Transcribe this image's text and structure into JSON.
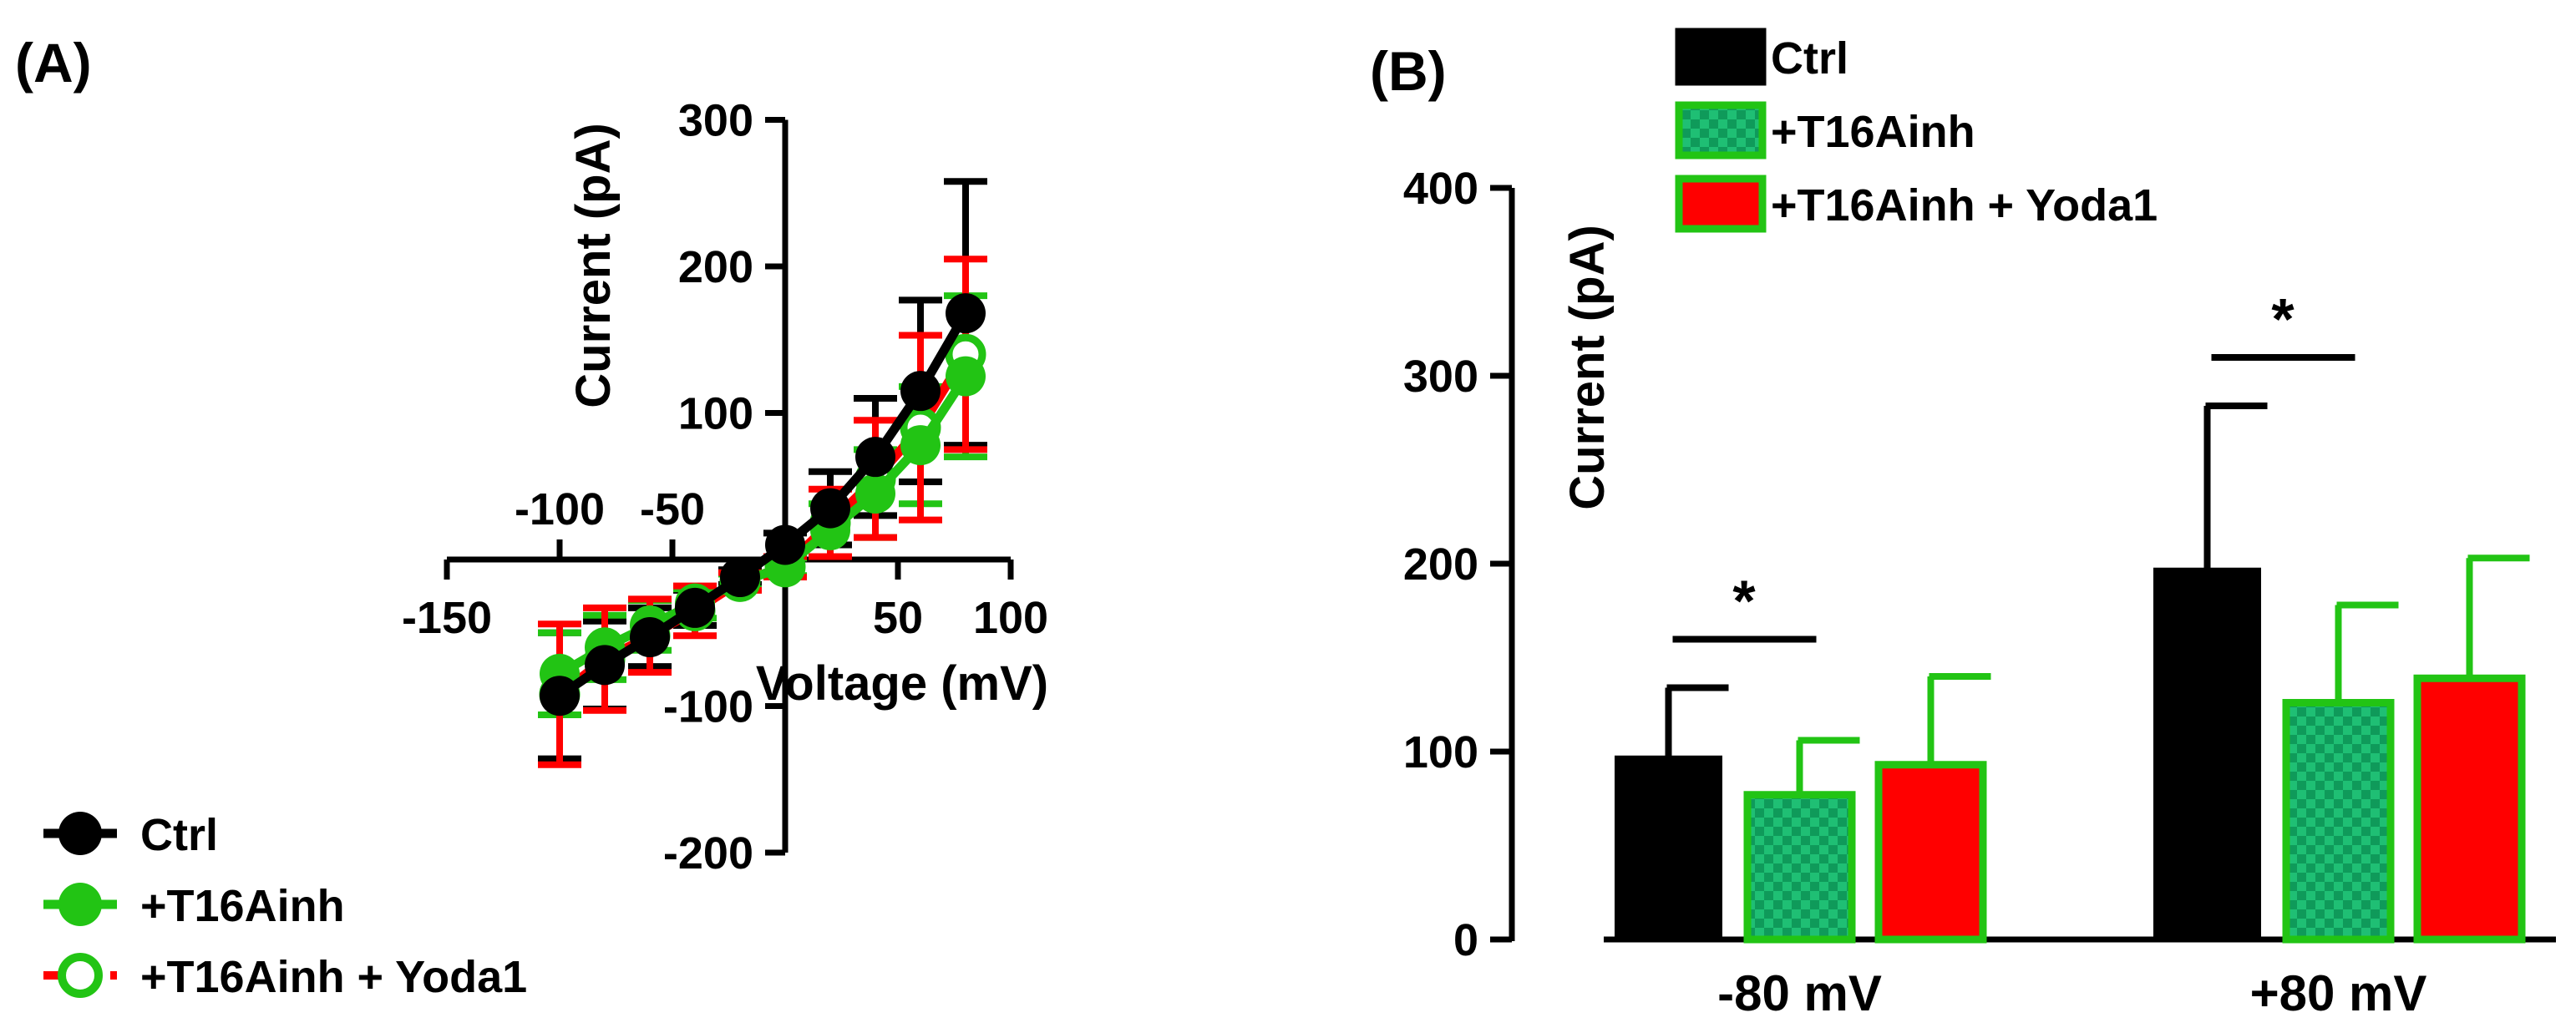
{
  "colors": {
    "ctrl": "#000000",
    "t16": "#22c414",
    "t16_dark": "#16a34a",
    "yoda": "#ff0000",
    "checker": "#11a866"
  },
  "legend_a": [
    {
      "key": "ctrl",
      "label": "Ctrl"
    },
    {
      "key": "t16",
      "label": "+T16Ainh"
    },
    {
      "key": "yoda",
      "label": "+T16Ainh + Yoda1"
    }
  ],
  "legend_b": [
    {
      "key": "ctrl",
      "label": "Ctrl"
    },
    {
      "key": "t16",
      "label": "+T16Ainh"
    },
    {
      "key": "yoda",
      "label": "+T16Ainh + Yoda1"
    }
  ],
  "chart_data": [
    {
      "panel_label": "(A)",
      "type": "line",
      "xlabel": "Voltage (mV)",
      "ylabel": "Current (pA)",
      "xlim": [
        -150,
        100
      ],
      "ylim": [
        -200,
        300
      ],
      "x_ticks": [
        -150,
        -100,
        -50,
        50,
        100
      ],
      "x_tick_labels": [
        "-150",
        "-100",
        "-50",
        "50",
        "100"
      ],
      "y_ticks": [
        300,
        200,
        100,
        -100,
        -200
      ],
      "y_tick_labels": [
        "300",
        "200",
        "100",
        "-100",
        "-200"
      ],
      "x": [
        -100,
        -80,
        -60,
        -40,
        -20,
        0,
        20,
        40,
        60,
        80
      ],
      "series": [
        {
          "key": "ctrl",
          "name": "Ctrl",
          "values": [
            -93,
            -72,
            -53,
            -33,
            -12,
            10,
            35,
            70,
            115,
            168
          ],
          "err": [
            43,
            30,
            20,
            12,
            5,
            8,
            25,
            40,
            62,
            90
          ],
          "marker": "filled"
        },
        {
          "key": "t16",
          "name": "+T16Ainh",
          "values": [
            -78,
            -60,
            -45,
            -30,
            -15,
            -5,
            20,
            45,
            78,
            125
          ],
          "err": [
            28,
            22,
            17,
            10,
            5,
            6,
            18,
            30,
            40,
            55
          ],
          "marker": "filled"
        },
        {
          "key": "yoda",
          "name": "+T16Ainh + Yoda1",
          "values": [
            -92,
            -68,
            -52,
            -35,
            -15,
            -5,
            25,
            55,
            90,
            140
          ],
          "err": [
            48,
            35,
            25,
            17,
            6,
            7,
            23,
            40,
            63,
            65
          ],
          "marker": "open"
        }
      ]
    },
    {
      "panel_label": "(B)",
      "type": "bar",
      "ylabel": "Current (pA)",
      "ylim": [
        0,
        400
      ],
      "y_ticks": [
        0,
        100,
        200,
        300,
        400
      ],
      "y_tick_labels": [
        "0",
        "100",
        "200",
        "300",
        "400"
      ],
      "categories": [
        "-80 mV",
        "+80 mV"
      ],
      "series": [
        {
          "key": "ctrl",
          "name": "Ctrl",
          "values": [
            97,
            197
          ],
          "err": [
            37,
            87
          ]
        },
        {
          "key": "t16",
          "name": "+T16Ainh",
          "values": [
            77,
            126
          ],
          "err": [
            29,
            52
          ]
        },
        {
          "key": "yoda",
          "name": "+T16Ainh + Yoda1",
          "values": [
            93,
            139
          ],
          "err": [
            47,
            64
          ]
        }
      ],
      "significance": [
        {
          "category": "-80 mV",
          "label": "*"
        },
        {
          "category": "+80 mV",
          "label": "*"
        }
      ]
    }
  ]
}
